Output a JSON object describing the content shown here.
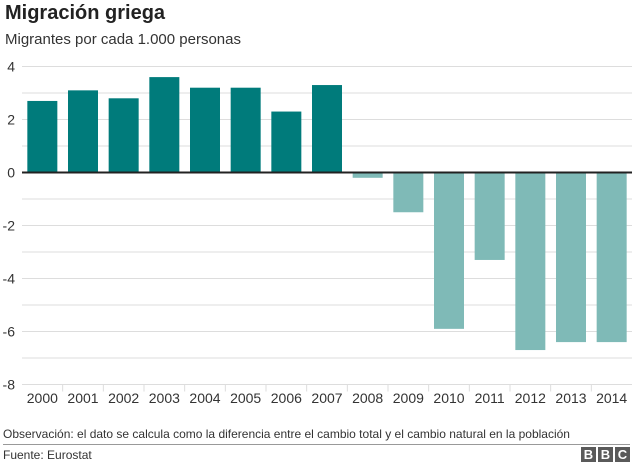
{
  "chart_data": {
    "type": "bar",
    "title": "Migración griega",
    "subtitle": "Migrantes por cada 1.000 personas",
    "xlabel": "",
    "ylabel": "",
    "categories": [
      "2000",
      "2001",
      "2002",
      "2003",
      "2004",
      "2005",
      "2006",
      "2007",
      "2008",
      "2009",
      "2010",
      "2011",
      "2012",
      "2013",
      "2014"
    ],
    "values": [
      2.7,
      3.1,
      2.8,
      3.6,
      3.2,
      3.2,
      2.3,
      3.3,
      -0.2,
      -1.5,
      -5.9,
      -3.3,
      -6.7,
      -6.4,
      -6.4
    ],
    "ylim": [
      -8,
      4
    ],
    "yticks": [
      "4",
      "2",
      "0",
      "-2",
      "-4",
      "-6",
      "-8"
    ],
    "grid": true,
    "colors": {
      "positive": "#007b7b",
      "negative": "#7fbab7",
      "grid": "#dddddd",
      "zero": "#222222"
    }
  },
  "note": "Observación: el dato se calcula como la diferencia entre el cambio total y el cambio natural en la población",
  "source": "Fuente: Eurostat",
  "logo": [
    "B",
    "B",
    "C"
  ]
}
